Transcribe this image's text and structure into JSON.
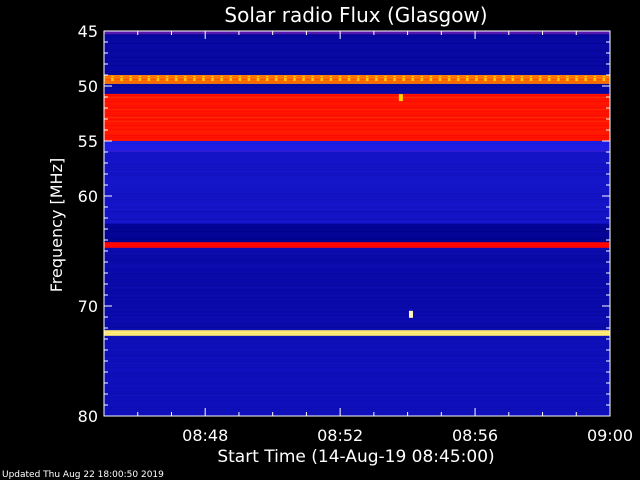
{
  "chart_data": {
    "type": "heatmap",
    "title": "Solar radio Flux (Glasgow)",
    "xlabel": "Start Time (14-Aug-19 08:45:00)",
    "ylabel": "Frequency [MHz]",
    "x_ticks": [
      "08:48",
      "08:52",
      "08:56",
      "09:00"
    ],
    "x_tick_minutes": [
      3,
      7,
      11,
      15
    ],
    "xlim_minutes_after_start": [
      0,
      15
    ],
    "y_ticks": [
      "45",
      "50",
      "55",
      "60",
      "70",
      "80"
    ],
    "y_tick_values": [
      45,
      50,
      55,
      60,
      70,
      80
    ],
    "ylim_mhz": [
      45,
      80
    ],
    "y_direction": "increasing-downward",
    "colormap": [
      "#000000",
      "#00008b",
      "#1e1ee6",
      "#ff0000",
      "#ffd700",
      "#ffffff"
    ],
    "frequency_bands": [
      {
        "from": 45.0,
        "to": 45.3,
        "level": 0.45
      },
      {
        "from": 45.3,
        "to": 49.0,
        "level": 0.25
      },
      {
        "from": 49.0,
        "to": 49.8,
        "level": 0.7
      },
      {
        "from": 49.8,
        "to": 50.7,
        "level": 0.25
      },
      {
        "from": 50.7,
        "to": 55.0,
        "level": 0.62
      },
      {
        "from": 55.0,
        "to": 56.0,
        "level": 0.4
      },
      {
        "from": 56.0,
        "to": 62.5,
        "level": 0.33
      },
      {
        "from": 62.5,
        "to": 64.2,
        "level": 0.22
      },
      {
        "from": 64.2,
        "to": 64.7,
        "level": 0.6
      },
      {
        "from": 64.7,
        "to": 72.2,
        "level": 0.27
      },
      {
        "from": 72.2,
        "to": 72.7,
        "level": 0.9
      },
      {
        "from": 72.7,
        "to": 80.0,
        "level": 0.3
      }
    ],
    "point_events": [
      {
        "minute": 8.8,
        "mhz": 51.1,
        "level": 0.8
      },
      {
        "minute": 9.1,
        "mhz": 70.8,
        "level": 0.95
      }
    ]
  },
  "footer": {
    "updated": "Updated Thu Aug 22 18:00:50 2019"
  }
}
